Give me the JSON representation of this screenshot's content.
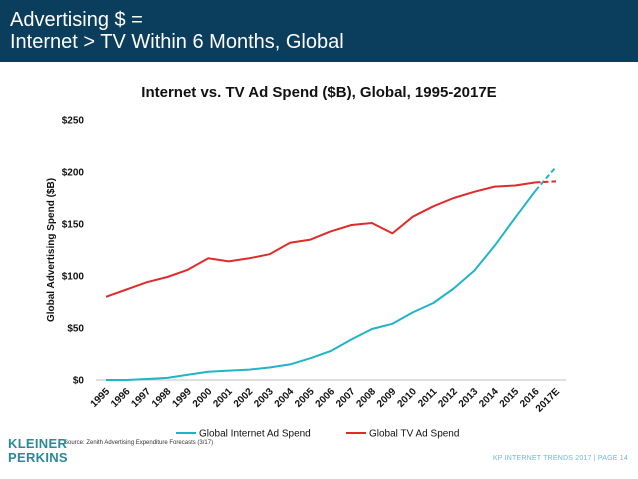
{
  "header": {
    "title_line1": "Advertising $ =",
    "title_line2": "Internet > TV Within 6 Months, Global"
  },
  "chart_data": {
    "type": "line",
    "title": "Internet vs. TV Ad Spend ($B), Global, 1995-2017E",
    "ylabel": "Global Advertising Spend ($B)",
    "xlabel": "",
    "categories": [
      "1995",
      "1996",
      "1997",
      "1998",
      "1999",
      "2000",
      "2001",
      "2002",
      "2003",
      "2004",
      "2005",
      "2006",
      "2007",
      "2008",
      "2009",
      "2010",
      "2011",
      "2012",
      "2013",
      "2014",
      "2015",
      "2016",
      "2017E"
    ],
    "yticks": [
      "$0",
      "$50",
      "$100",
      "$150",
      "$200",
      "$250"
    ],
    "ylim": [
      0,
      250
    ],
    "grid": false,
    "legend": "bottom",
    "series": [
      {
        "name": "Global Internet Ad Spend",
        "color": "#1fb5c6",
        "dashed_from_index": 21,
        "values": [
          0,
          0,
          1,
          2,
          5,
          8,
          9,
          10,
          12,
          15,
          21,
          28,
          39,
          49,
          54,
          65,
          74,
          88,
          105,
          129,
          156,
          182,
          205
        ]
      },
      {
        "name": "Global TV Ad Spend",
        "color": "#e02b2b",
        "dashed_from_index": 21,
        "values": [
          80,
          87,
          94,
          99,
          106,
          117,
          114,
          117,
          121,
          132,
          135,
          143,
          149,
          151,
          141,
          157,
          167,
          175,
          181,
          186,
          187,
          190,
          191
        ]
      }
    ]
  },
  "source": "Source: Zenith Advertising Expenditure Forecasts (3/17)",
  "logo": {
    "line1": "KLEINER",
    "line2": "PERKINS"
  },
  "footer": "KP INTERNET TRENDS 2017  |  PAGE 14"
}
